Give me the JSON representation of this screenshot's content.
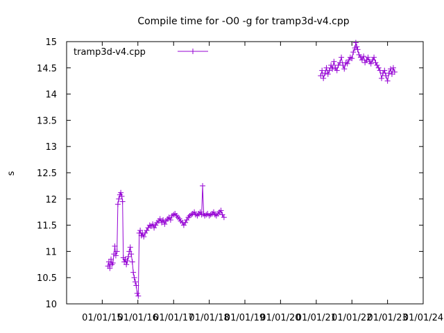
{
  "chart_data": {
    "type": "scatter",
    "title": "Compile time for -O0 -g for tramp3d-v4.cpp",
    "ylabel": "s",
    "xlabel": "",
    "ylim": [
      10,
      15
    ],
    "yticks": [
      "10",
      "10.5",
      "11",
      "11.5",
      "12",
      "12.5",
      "13",
      "13.5",
      "14",
      "14.5",
      "15"
    ],
    "xticks": [
      "01/01/15",
      "01/01/16",
      "01/01/17",
      "01/01/18",
      "01/01/19",
      "01/01/20",
      "01/01/21",
      "01/01/22",
      "01/01/23",
      "01/01/24"
    ],
    "grid": false,
    "legend": "top-left",
    "series": [
      {
        "name": "tramp3d-v4.cpp",
        "color": "#9400d3",
        "marker": "plus",
        "points": [
          [
            "2015-03-01",
            10.72
          ],
          [
            "2015-03-10",
            10.8
          ],
          [
            "2015-03-20",
            10.68
          ],
          [
            "2015-04-01",
            10.85
          ],
          [
            "2015-04-10",
            10.75
          ],
          [
            "2015-04-20",
            10.78
          ],
          [
            "2015-05-01",
            10.95
          ],
          [
            "2015-05-10",
            11.1
          ],
          [
            "2015-05-20",
            10.92
          ],
          [
            "2015-06-01",
            11.0
          ],
          [
            "2015-06-10",
            11.9
          ],
          [
            "2015-06-20",
            12.0
          ],
          [
            "2015-07-01",
            12.08
          ],
          [
            "2015-07-10",
            12.12
          ],
          [
            "2015-07-20",
            12.05
          ],
          [
            "2015-07-28",
            11.95
          ],
          [
            "2015-08-05",
            10.88
          ],
          [
            "2015-08-15",
            10.8
          ],
          [
            "2015-08-25",
            10.85
          ],
          [
            "2015-09-05",
            10.75
          ],
          [
            "2015-09-15",
            10.82
          ],
          [
            "2015-09-25",
            10.9
          ],
          [
            "2015-10-05",
            11.0
          ],
          [
            "2015-10-15",
            11.08
          ],
          [
            "2015-10-25",
            10.95
          ],
          [
            "2015-11-05",
            10.8
          ],
          [
            "2015-11-15",
            10.6
          ],
          [
            "2015-11-25",
            10.5
          ],
          [
            "2015-12-05",
            10.42
          ],
          [
            "2015-12-15",
            10.35
          ],
          [
            "2015-12-25",
            10.2
          ],
          [
            "2016-01-05",
            10.15
          ],
          [
            "2016-01-15",
            11.35
          ],
          [
            "2016-01-25",
            11.4
          ],
          [
            "2016-02-05",
            11.3
          ],
          [
            "2016-02-15",
            11.35
          ],
          [
            "2016-03-01",
            11.28
          ],
          [
            "2016-03-15",
            11.35
          ],
          [
            "2016-04-01",
            11.4
          ],
          [
            "2016-04-15",
            11.45
          ],
          [
            "2016-05-01",
            11.5
          ],
          [
            "2016-05-15",
            11.48
          ],
          [
            "2016-06-01",
            11.52
          ],
          [
            "2016-06-15",
            11.45
          ],
          [
            "2016-07-01",
            11.5
          ],
          [
            "2016-07-15",
            11.55
          ],
          [
            "2016-08-01",
            11.58
          ],
          [
            "2016-08-15",
            11.62
          ],
          [
            "2016-09-01",
            11.55
          ],
          [
            "2016-09-15",
            11.6
          ],
          [
            "2016-10-01",
            11.52
          ],
          [
            "2016-10-15",
            11.58
          ],
          [
            "2016-11-01",
            11.62
          ],
          [
            "2016-11-15",
            11.65
          ],
          [
            "2016-12-01",
            11.6
          ],
          [
            "2016-12-15",
            11.68
          ],
          [
            "2017-01-01",
            11.7
          ],
          [
            "2017-01-15",
            11.72
          ],
          [
            "2017-02-01",
            11.68
          ],
          [
            "2017-02-15",
            11.65
          ],
          [
            "2017-03-01",
            11.62
          ],
          [
            "2017-03-15",
            11.58
          ],
          [
            "2017-04-01",
            11.55
          ],
          [
            "2017-04-15",
            11.5
          ],
          [
            "2017-05-01",
            11.55
          ],
          [
            "2017-05-15",
            11.6
          ],
          [
            "2017-06-01",
            11.65
          ],
          [
            "2017-06-15",
            11.68
          ],
          [
            "2017-07-01",
            11.7
          ],
          [
            "2017-07-15",
            11.72
          ],
          [
            "2017-08-01",
            11.75
          ],
          [
            "2017-08-15",
            11.7
          ],
          [
            "2017-09-01",
            11.68
          ],
          [
            "2017-09-15",
            11.72
          ],
          [
            "2017-10-01",
            11.75
          ],
          [
            "2017-10-15",
            11.7
          ],
          [
            "2017-10-25",
            12.25
          ],
          [
            "2017-11-05",
            11.72
          ],
          [
            "2017-11-15",
            11.68
          ],
          [
            "2017-12-01",
            11.7
          ],
          [
            "2017-12-15",
            11.72
          ],
          [
            "2018-01-01",
            11.68
          ],
          [
            "2018-01-15",
            11.7
          ],
          [
            "2018-02-01",
            11.72
          ],
          [
            "2018-02-15",
            11.75
          ],
          [
            "2018-03-01",
            11.7
          ],
          [
            "2018-03-15",
            11.68
          ],
          [
            "2018-04-01",
            11.72
          ],
          [
            "2018-04-15",
            11.75
          ],
          [
            "2018-05-01",
            11.78
          ],
          [
            "2018-05-15",
            11.7
          ],
          [
            "2018-06-01",
            11.65
          ],
          [
            "2021-02-15",
            14.35
          ],
          [
            "2021-03-01",
            14.45
          ],
          [
            "2021-03-15",
            14.3
          ],
          [
            "2021-04-01",
            14.4
          ],
          [
            "2021-04-15",
            14.5
          ],
          [
            "2021-05-01",
            14.38
          ],
          [
            "2021-05-15",
            14.45
          ],
          [
            "2021-06-01",
            14.55
          ],
          [
            "2021-06-15",
            14.48
          ],
          [
            "2021-07-01",
            14.62
          ],
          [
            "2021-07-15",
            14.5
          ],
          [
            "2021-08-01",
            14.45
          ],
          [
            "2021-08-15",
            14.55
          ],
          [
            "2021-09-01",
            14.6
          ],
          [
            "2021-09-15",
            14.7
          ],
          [
            "2021-10-01",
            14.55
          ],
          [
            "2021-10-15",
            14.48
          ],
          [
            "2021-11-01",
            14.6
          ],
          [
            "2021-11-15",
            14.58
          ],
          [
            "2021-12-01",
            14.65
          ],
          [
            "2021-12-15",
            14.7
          ],
          [
            "2022-01-01",
            14.68
          ],
          [
            "2022-01-15",
            14.8
          ],
          [
            "2022-02-01",
            14.88
          ],
          [
            "2022-02-10",
            14.98
          ],
          [
            "2022-02-20",
            14.9
          ],
          [
            "2022-03-01",
            14.85
          ],
          [
            "2022-03-15",
            14.75
          ],
          [
            "2022-04-01",
            14.7
          ],
          [
            "2022-04-15",
            14.65
          ],
          [
            "2022-05-01",
            14.72
          ],
          [
            "2022-05-15",
            14.6
          ],
          [
            "2022-06-01",
            14.65
          ],
          [
            "2022-06-15",
            14.7
          ],
          [
            "2022-07-01",
            14.62
          ],
          [
            "2022-07-15",
            14.58
          ],
          [
            "2022-08-01",
            14.65
          ],
          [
            "2022-08-15",
            14.7
          ],
          [
            "2022-09-01",
            14.6
          ],
          [
            "2022-09-15",
            14.55
          ],
          [
            "2022-10-01",
            14.5
          ],
          [
            "2022-10-15",
            14.45
          ],
          [
            "2022-11-01",
            14.3
          ],
          [
            "2022-11-15",
            14.4
          ],
          [
            "2022-12-01",
            14.45
          ],
          [
            "2022-12-15",
            14.35
          ],
          [
            "2023-01-01",
            14.25
          ],
          [
            "2023-01-15",
            14.4
          ],
          [
            "2023-02-01",
            14.48
          ],
          [
            "2023-02-15",
            14.38
          ],
          [
            "2023-03-01",
            14.5
          ],
          [
            "2023-03-15",
            14.42
          ]
        ]
      }
    ]
  }
}
